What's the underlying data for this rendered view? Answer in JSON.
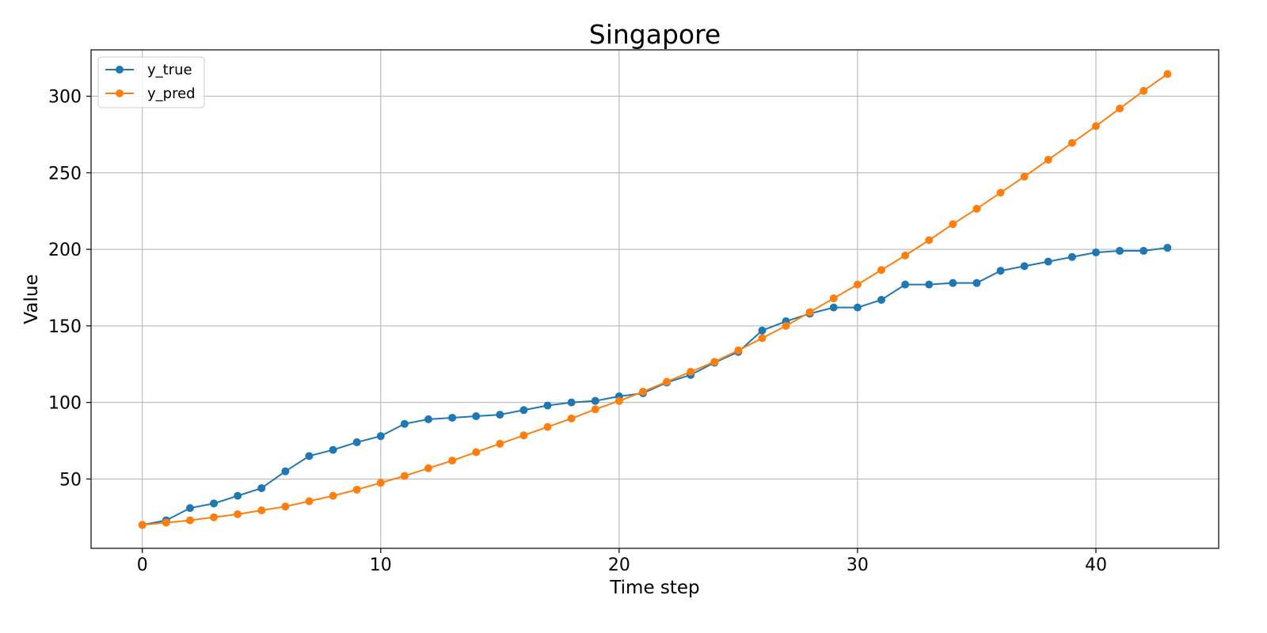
{
  "chart_data": {
    "type": "line",
    "title": "Singapore",
    "xlabel": "Time step",
    "ylabel": "Value",
    "xlim": [
      -2.15,
      45.15
    ],
    "ylim": [
      4.7,
      330.3
    ],
    "xticks": [
      0,
      10,
      20,
      30,
      40
    ],
    "yticks": [
      50,
      100,
      150,
      200,
      250,
      300
    ],
    "grid": true,
    "legend_position": "top-left",
    "x": [
      0,
      1,
      2,
      3,
      4,
      5,
      6,
      7,
      8,
      9,
      10,
      11,
      12,
      13,
      14,
      15,
      16,
      17,
      18,
      19,
      20,
      21,
      22,
      23,
      24,
      25,
      26,
      27,
      28,
      29,
      30,
      31,
      32,
      33,
      34,
      35,
      36,
      37,
      38,
      39,
      40,
      41,
      42,
      43
    ],
    "series": [
      {
        "name": "y_true",
        "color": "#1f77b4",
        "values": [
          20,
          23,
          31,
          34,
          39,
          44,
          55,
          65,
          69,
          74,
          78,
          86,
          89,
          90,
          91,
          92,
          95,
          98,
          100,
          101,
          104,
          106,
          113,
          118,
          126,
          133,
          147,
          153,
          158,
          162,
          162,
          167,
          177,
          177,
          178,
          178,
          186,
          189,
          192,
          195,
          198,
          199,
          199,
          201
        ]
      },
      {
        "name": "y_pred",
        "color": "#ff7f0e",
        "values": [
          20,
          21.5,
          23,
          25,
          27,
          29.5,
          32,
          35.5,
          39,
          43,
          47.5,
          52,
          57,
          62,
          67.5,
          73,
          78.5,
          84,
          89.5,
          95.5,
          101,
          107,
          113.5,
          120,
          126.5,
          134,
          142,
          150,
          159,
          168,
          177,
          186.5,
          196,
          206,
          216.5,
          226.5,
          237,
          247.5,
          258.5,
          269.5,
          280.5,
          292,
          303.5,
          314.5
        ]
      }
    ]
  }
}
